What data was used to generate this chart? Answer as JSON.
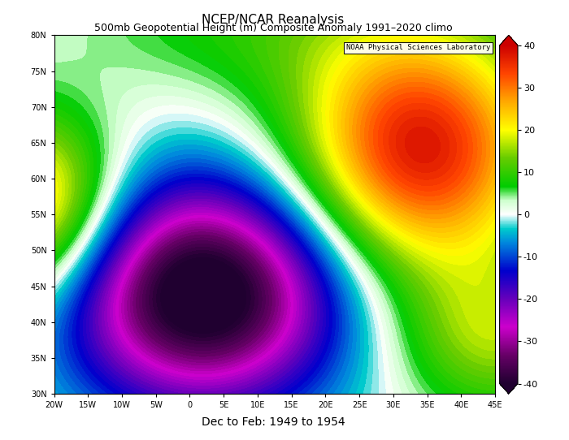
{
  "title1": "NCEP/NCAR Reanalysis",
  "title2": "500mb Geopotential Height (m) Composite Anomaly 1991–2020 climo",
  "xlabel": "Dec to Feb: 1949 to 1954",
  "watermark": "NOAA Physical Sciences Laboratory",
  "lon_min": -20,
  "lon_max": 45,
  "lat_min": 30,
  "lat_max": 80,
  "lon_ticks": [
    -20,
    -15,
    -10,
    -5,
    0,
    5,
    10,
    15,
    20,
    25,
    30,
    35,
    40,
    45
  ],
  "lat_ticks": [
    30,
    35,
    40,
    45,
    50,
    55,
    60,
    65,
    70,
    75,
    80
  ],
  "colorbar_ticks": [
    -40,
    -30,
    -20,
    -10,
    0,
    10,
    20,
    30,
    40
  ],
  "cmap_nodes": [
    [
      0.0,
      "#200030"
    ],
    [
      0.083,
      "#660066"
    ],
    [
      0.167,
      "#cc00cc"
    ],
    [
      0.25,
      "#6600bb"
    ],
    [
      0.333,
      "#0000cc"
    ],
    [
      0.417,
      "#0088dd"
    ],
    [
      0.458,
      "#00cccc"
    ],
    [
      0.5,
      "#ffffff"
    ],
    [
      0.542,
      "#ccffcc"
    ],
    [
      0.583,
      "#00cc00"
    ],
    [
      0.667,
      "#66cc00"
    ],
    [
      0.75,
      "#ffff00"
    ],
    [
      0.833,
      "#ffaa00"
    ],
    [
      0.917,
      "#ff4400"
    ],
    [
      1.0,
      "#cc0000"
    ]
  ],
  "anomaly_centers": [
    {
      "lon": 2.0,
      "lat": 44.0,
      "amp": -46.0,
      "slon": 14.0,
      "slat": 11.0
    },
    {
      "lon": 34.0,
      "lat": 64.0,
      "amp": 38.0,
      "slon": 13.0,
      "slat": 12.0
    },
    {
      "lon": -23.0,
      "lat": 56.0,
      "amp": 28.0,
      "slon": 9.0,
      "slat": 9.0
    },
    {
      "lon": 10.0,
      "lat": 82.0,
      "amp": 8.0,
      "slon": 20.0,
      "slat": 8.0
    },
    {
      "lon": 45.0,
      "lat": 38.0,
      "amp": 15.0,
      "slon": 10.0,
      "slat": 8.0
    }
  ]
}
